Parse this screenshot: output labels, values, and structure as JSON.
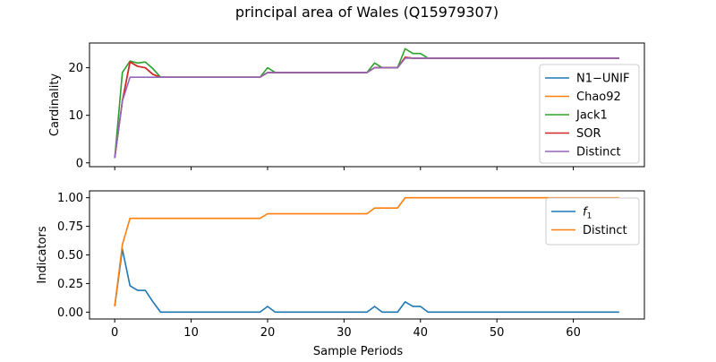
{
  "figure_title": "principal area of Wales (Q15979307)",
  "chart_data": [
    {
      "type": "line",
      "ylabel": "Cardinality",
      "xlabel": "",
      "xlim": [
        -3.3,
        69.3
      ],
      "ylim": [
        -0.8,
        25.2
      ],
      "xticks": [
        0,
        10,
        20,
        30,
        40,
        50,
        60
      ],
      "yticks": [
        0,
        10,
        20
      ],
      "legend_position": "right",
      "series": [
        {
          "name": "N1−UNIF",
          "color": "#1f77b4",
          "x": [
            0,
            1,
            2,
            3,
            4,
            5,
            6,
            7,
            8,
            9,
            10,
            11,
            12,
            13,
            14,
            15,
            16,
            17,
            18,
            19,
            20,
            21,
            22,
            23,
            24,
            25,
            26,
            27,
            28,
            29,
            30,
            31,
            32,
            33,
            34,
            35,
            36,
            37,
            38,
            39,
            40,
            41,
            42,
            43,
            44,
            45,
            46,
            47,
            48,
            49,
            50,
            51,
            52,
            53,
            54,
            55,
            56,
            57,
            58,
            59,
            60,
            61,
            62,
            63,
            64,
            65,
            66
          ],
          "y": [
            1,
            13,
            21.2,
            20.3,
            20,
            18.6,
            18,
            18,
            18,
            18,
            18,
            18,
            18,
            18,
            18,
            18,
            18,
            18,
            18,
            18,
            19,
            19,
            19,
            19,
            19,
            19,
            19,
            19,
            19,
            19,
            19,
            19,
            19,
            19,
            20,
            20,
            20,
            20,
            22.2,
            22,
            22,
            22,
            22,
            22,
            22,
            22,
            22,
            22,
            22,
            22,
            22,
            22,
            22,
            22,
            22,
            22,
            22,
            22,
            22,
            22,
            22,
            22,
            22,
            22,
            22,
            22,
            22
          ]
        },
        {
          "name": "Chao92",
          "color": "#ff7f0e",
          "x": [
            0,
            1,
            2,
            3,
            4,
            5,
            6,
            7,
            8,
            9,
            10,
            11,
            12,
            13,
            14,
            15,
            16,
            17,
            18,
            19,
            20,
            21,
            22,
            23,
            24,
            25,
            26,
            27,
            28,
            29,
            30,
            31,
            32,
            33,
            34,
            35,
            36,
            37,
            38,
            39,
            40,
            41,
            42,
            43,
            44,
            45,
            46,
            47,
            48,
            49,
            50,
            51,
            52,
            53,
            54,
            55,
            56,
            57,
            58,
            59,
            60,
            61,
            62,
            63,
            64,
            65,
            66
          ],
          "y": [
            1,
            13,
            21.2,
            20.3,
            20,
            18.6,
            18,
            18,
            18,
            18,
            18,
            18,
            18,
            18,
            18,
            18,
            18,
            18,
            18,
            18,
            19,
            19,
            19,
            19,
            19,
            19,
            19,
            19,
            19,
            19,
            19,
            19,
            19,
            19,
            20,
            20,
            20,
            20,
            22.2,
            22,
            22,
            22,
            22,
            22,
            22,
            22,
            22,
            22,
            22,
            22,
            22,
            22,
            22,
            22,
            22,
            22,
            22,
            22,
            22,
            22,
            22,
            22,
            22,
            22,
            22,
            22,
            22
          ]
        },
        {
          "name": "Jack1",
          "color": "#2ca02c",
          "x": [
            0,
            1,
            2,
            3,
            4,
            5,
            6,
            7,
            8,
            9,
            10,
            11,
            12,
            13,
            14,
            15,
            16,
            17,
            18,
            19,
            20,
            21,
            22,
            23,
            24,
            25,
            26,
            27,
            28,
            29,
            30,
            31,
            32,
            33,
            34,
            35,
            36,
            37,
            38,
            39,
            40,
            41,
            42,
            43,
            44,
            45,
            46,
            47,
            48,
            49,
            50,
            51,
            52,
            53,
            54,
            55,
            56,
            57,
            58,
            59,
            60,
            61,
            62,
            63,
            64,
            65,
            66
          ],
          "y": [
            1,
            19,
            21.4,
            21,
            21.2,
            19.8,
            18,
            18,
            18,
            18,
            18,
            18,
            18,
            18,
            18,
            18,
            18,
            18,
            18,
            18,
            20,
            19,
            19,
            19,
            19,
            19,
            19,
            19,
            19,
            19,
            19,
            19,
            19,
            19,
            21,
            20,
            20,
            20,
            24,
            23,
            23,
            22,
            22,
            22,
            22,
            22,
            22,
            22,
            22,
            22,
            22,
            22,
            22,
            22,
            22,
            22,
            22,
            22,
            22,
            22,
            22,
            22,
            22,
            22,
            22,
            22,
            22
          ]
        },
        {
          "name": "SOR",
          "color": "#d62728",
          "x": [
            0,
            1,
            2,
            3,
            4,
            5,
            6,
            7,
            8,
            9,
            10,
            11,
            12,
            13,
            14,
            15,
            16,
            17,
            18,
            19,
            20,
            21,
            22,
            23,
            24,
            25,
            26,
            27,
            28,
            29,
            30,
            31,
            32,
            33,
            34,
            35,
            36,
            37,
            38,
            39,
            40,
            41,
            42,
            43,
            44,
            45,
            46,
            47,
            48,
            49,
            50,
            51,
            52,
            53,
            54,
            55,
            56,
            57,
            58,
            59,
            60,
            61,
            62,
            63,
            64,
            65,
            66
          ],
          "y": [
            1,
            13,
            21.2,
            20.3,
            20,
            18.6,
            18,
            18,
            18,
            18,
            18,
            18,
            18,
            18,
            18,
            18,
            18,
            18,
            18,
            18,
            19,
            19,
            19,
            19,
            19,
            19,
            19,
            19,
            19,
            19,
            19,
            19,
            19,
            19,
            20,
            20,
            20,
            20,
            22.2,
            22,
            22,
            22,
            22,
            22,
            22,
            22,
            22,
            22,
            22,
            22,
            22,
            22,
            22,
            22,
            22,
            22,
            22,
            22,
            22,
            22,
            22,
            22,
            22,
            22,
            22,
            22,
            22
          ]
        },
        {
          "name": "Distinct",
          "color": "#9467bd",
          "x": [
            0,
            1,
            2,
            3,
            4,
            5,
            6,
            7,
            8,
            9,
            10,
            11,
            12,
            13,
            14,
            15,
            16,
            17,
            18,
            19,
            20,
            21,
            22,
            23,
            24,
            25,
            26,
            27,
            28,
            29,
            30,
            31,
            32,
            33,
            34,
            35,
            36,
            37,
            38,
            39,
            40,
            41,
            42,
            43,
            44,
            45,
            46,
            47,
            48,
            49,
            50,
            51,
            52,
            53,
            54,
            55,
            56,
            57,
            58,
            59,
            60,
            61,
            62,
            63,
            64,
            65,
            66
          ],
          "y": [
            1,
            13,
            18,
            18,
            18,
            18,
            18,
            18,
            18,
            18,
            18,
            18,
            18,
            18,
            18,
            18,
            18,
            18,
            18,
            18,
            19,
            19,
            19,
            19,
            19,
            19,
            19,
            19,
            19,
            19,
            19,
            19,
            19,
            19,
            20,
            20,
            20,
            20,
            22,
            22,
            22,
            22,
            22,
            22,
            22,
            22,
            22,
            22,
            22,
            22,
            22,
            22,
            22,
            22,
            22,
            22,
            22,
            22,
            22,
            22,
            22,
            22,
            22,
            22,
            22,
            22,
            22
          ]
        }
      ]
    },
    {
      "type": "line",
      "ylabel": "Indicators",
      "xlabel": "Sample Periods",
      "xlim": [
        -3.3,
        69.3
      ],
      "ylim": [
        -0.06,
        1.06
      ],
      "xticks": [
        0,
        10,
        20,
        30,
        40,
        50,
        60
      ],
      "yticks": [
        0.0,
        0.25,
        0.5,
        0.75,
        1.0
      ],
      "ytick_labels": [
        "0.00",
        "0.25",
        "0.50",
        "0.75",
        "1.00"
      ],
      "legend_position": "upper right",
      "series": [
        {
          "name": "f1",
          "color": "#1f77b4",
          "x": [
            0,
            1,
            2,
            3,
            4,
            5,
            6,
            7,
            8,
            9,
            10,
            11,
            12,
            13,
            14,
            15,
            16,
            17,
            18,
            19,
            20,
            21,
            22,
            23,
            24,
            25,
            26,
            27,
            28,
            29,
            30,
            31,
            32,
            33,
            34,
            35,
            36,
            37,
            38,
            39,
            40,
            41,
            42,
            43,
            44,
            45,
            46,
            47,
            48,
            49,
            50,
            51,
            52,
            53,
            54,
            55,
            56,
            57,
            58,
            59,
            60,
            61,
            62,
            63,
            64,
            65,
            66
          ],
          "y": [
            0.05,
            0.55,
            0.23,
            0.19,
            0.19,
            0.09,
            0,
            0,
            0,
            0,
            0,
            0,
            0,
            0,
            0,
            0,
            0,
            0,
            0,
            0,
            0.05,
            0,
            0,
            0,
            0,
            0,
            0,
            0,
            0,
            0,
            0,
            0,
            0,
            0,
            0.05,
            0,
            0,
            0,
            0.09,
            0.05,
            0.05,
            0,
            0,
            0,
            0,
            0,
            0,
            0,
            0,
            0,
            0,
            0,
            0,
            0,
            0,
            0,
            0,
            0,
            0,
            0,
            0,
            0,
            0,
            0,
            0,
            0,
            0
          ]
        },
        {
          "name": "Distinct",
          "color": "#ff7f0e",
          "x": [
            0,
            1,
            2,
            3,
            4,
            5,
            6,
            7,
            8,
            9,
            10,
            11,
            12,
            13,
            14,
            15,
            16,
            17,
            18,
            19,
            20,
            21,
            22,
            23,
            24,
            25,
            26,
            27,
            28,
            29,
            30,
            31,
            32,
            33,
            34,
            35,
            36,
            37,
            38,
            39,
            40,
            41,
            42,
            43,
            44,
            45,
            46,
            47,
            48,
            49,
            50,
            51,
            52,
            53,
            54,
            55,
            56,
            57,
            58,
            59,
            60,
            61,
            62,
            63,
            64,
            65,
            66
          ],
          "y": [
            0.05,
            0.59,
            0.82,
            0.82,
            0.82,
            0.82,
            0.82,
            0.82,
            0.82,
            0.82,
            0.82,
            0.82,
            0.82,
            0.82,
            0.82,
            0.82,
            0.82,
            0.82,
            0.82,
            0.82,
            0.86,
            0.86,
            0.86,
            0.86,
            0.86,
            0.86,
            0.86,
            0.86,
            0.86,
            0.86,
            0.86,
            0.86,
            0.86,
            0.86,
            0.91,
            0.91,
            0.91,
            0.91,
            1,
            1,
            1,
            1,
            1,
            1,
            1,
            1,
            1,
            1,
            1,
            1,
            1,
            1,
            1,
            1,
            1,
            1,
            1,
            1,
            1,
            1,
            1,
            1,
            1,
            1,
            1,
            1,
            1
          ]
        }
      ]
    }
  ]
}
